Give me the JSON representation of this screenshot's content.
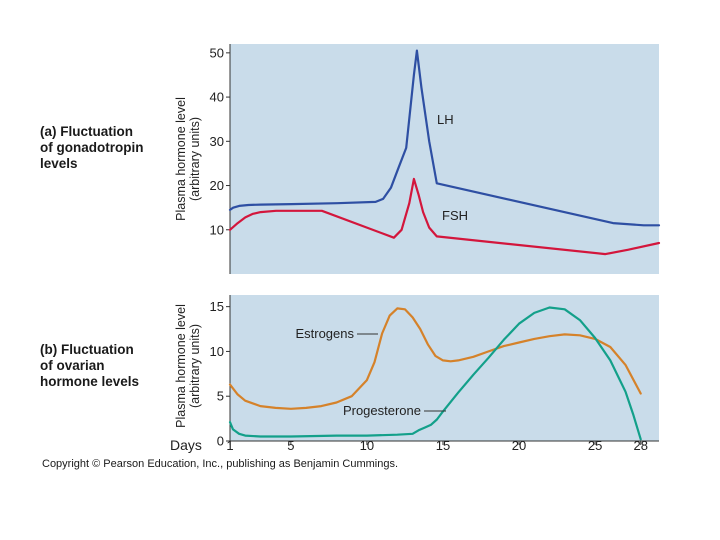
{
  "panel_a_title": [
    "(a) Fluctuation",
    "of gonadotropin",
    "levels"
  ],
  "panel_b_title": [
    "(b) Fluctuation",
    "of ovarian",
    "hormone levels"
  ],
  "copyright": "Copyright © Pearson Education, Inc., publishing as Benjamin Cummings.",
  "colors": {
    "plot_bg": "#c9dcea",
    "lh": "#2e4fa3",
    "fsh": "#d3163c",
    "estrogens": "#d5822a",
    "progesterone": "#13a08a"
  },
  "chart_data": [
    {
      "type": "line",
      "ylabel_lines": [
        "Plasma hormone level",
        "(arbitrary units)"
      ],
      "yticks": [
        10,
        20,
        30,
        40,
        50
      ],
      "xlim": [
        1,
        29
      ],
      "ylim": [
        0,
        52
      ],
      "series": [
        {
          "name": "LH",
          "color": "#2e4fa3",
          "x": [
            1,
            1.2,
            1.6,
            2.2,
            3,
            5,
            8,
            10.5,
            11,
            11.5,
            12,
            12.5,
            13,
            13.2,
            13.5,
            14,
            14.5,
            26,
            28,
            29
          ],
          "y": [
            14.5,
            15,
            15.4,
            15.6,
            15.7,
            15.8,
            16,
            16.3,
            17,
            19.5,
            24,
            28.5,
            45,
            50.5,
            42,
            30,
            20.5,
            11.5,
            11,
            11
          ]
        },
        {
          "name": "FSH",
          "color": "#d3163c",
          "x": [
            1,
            1.5,
            2,
            2.5,
            3,
            4,
            7,
            11.7,
            12.2,
            12.7,
            13,
            13.3,
            13.6,
            14,
            14.5,
            25.5,
            27,
            29
          ],
          "y": [
            10,
            11.5,
            12.8,
            13.6,
            14,
            14.3,
            14.3,
            8.2,
            10,
            16,
            21.5,
            18,
            14,
            10.5,
            8.5,
            4.5,
            5.5,
            7
          ]
        }
      ],
      "annotations": [
        {
          "text": "LH"
        },
        {
          "text": "FSH"
        }
      ]
    },
    {
      "type": "line",
      "ylabel_lines": [
        "Plasma hormone level",
        "(arbitrary units)"
      ],
      "yticks": [
        0,
        5,
        10,
        15
      ],
      "xticks": [
        1,
        5,
        10,
        15,
        20,
        25,
        28
      ],
      "xlabel": "Days",
      "xlim": [
        1,
        29.2
      ],
      "ylim": [
        0,
        16.3
      ],
      "series": [
        {
          "name": "Estrogens",
          "color": "#d5822a",
          "x": [
            1,
            1.5,
            2,
            3,
            4,
            5,
            6,
            7,
            8,
            9,
            10,
            10.5,
            11,
            11.5,
            12,
            12.5,
            13,
            13.5,
            14,
            14.5,
            15,
            15.5,
            16,
            17,
            18,
            19,
            20,
            21,
            22,
            23,
            24,
            25,
            26,
            27,
            28
          ],
          "y": [
            6.3,
            5.2,
            4.5,
            3.9,
            3.7,
            3.6,
            3.7,
            3.9,
            4.3,
            5,
            6.8,
            8.8,
            12,
            14,
            14.8,
            14.7,
            13.8,
            12.5,
            10.8,
            9.5,
            9,
            8.9,
            9,
            9.4,
            10,
            10.6,
            11,
            11.4,
            11.7,
            11.9,
            11.8,
            11.4,
            10.5,
            8.5,
            5.3
          ]
        },
        {
          "name": "Progesterone",
          "color": "#13a08a",
          "x": [
            1,
            1.2,
            1.6,
            2,
            3,
            5,
            8,
            10,
            12,
            13,
            13.4,
            13.8,
            14.2,
            14.6,
            15,
            16,
            17,
            18,
            19,
            20,
            21,
            22,
            23,
            24,
            25,
            26,
            27,
            27.5,
            28
          ],
          "y": [
            2.1,
            1.3,
            0.8,
            0.6,
            0.5,
            0.5,
            0.6,
            0.6,
            0.7,
            0.8,
            1.2,
            1.5,
            1.8,
            2.4,
            3.3,
            5.4,
            7.4,
            9.3,
            11.3,
            13.1,
            14.3,
            14.9,
            14.7,
            13.5,
            11.5,
            9,
            5.5,
            3,
            0.2
          ]
        }
      ],
      "annotations": [
        {
          "text": "Estrogens"
        },
        {
          "text": "Progesterone"
        }
      ]
    }
  ]
}
